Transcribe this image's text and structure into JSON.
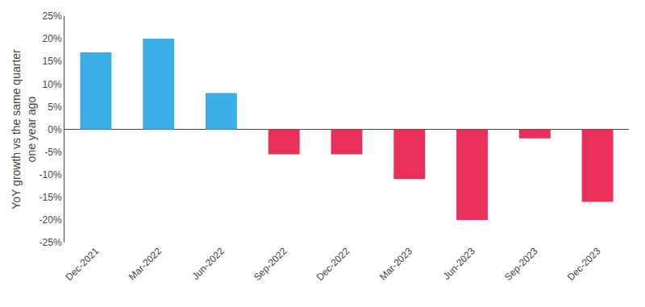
{
  "chart_data": {
    "type": "bar",
    "categories": [
      "Dec-2021",
      "Mar-2022",
      "Jun-2022",
      "Sep-2022",
      "Dec-2022",
      "Mar-2023",
      "Jun-2023",
      "Sep-2023",
      "Dec-2023"
    ],
    "values": [
      17.0,
      20.0,
      8.0,
      -5.5,
      -5.5,
      -11.0,
      -20.0,
      -2.0,
      -16.0
    ],
    "colors": [
      "#3BAEE8",
      "#3BAEE8",
      "#3BAEE8",
      "#E8305A",
      "#E8305A",
      "#E8305A",
      "#E8305A",
      "#E8305A",
      "#E8305A"
    ],
    "ylabel": "YoY growth vs the same quarter\none year ago",
    "ylim": [
      -25,
      25
    ],
    "yticks": [
      {
        "value": -25,
        "label": "-25%"
      },
      {
        "value": -20,
        "label": "-20%"
      },
      {
        "value": -15,
        "label": "-15%"
      },
      {
        "value": -10,
        "label": "-10%"
      },
      {
        "value": -5,
        "label": "-5%"
      },
      {
        "value": 0,
        "label": "0%"
      },
      {
        "value": 5,
        "label": "5%"
      },
      {
        "value": 10,
        "label": "10%"
      },
      {
        "value": 15,
        "label": "15%"
      },
      {
        "value": 20,
        "label": "20%"
      },
      {
        "value": 25,
        "label": "25%"
      }
    ],
    "grid": false
  }
}
